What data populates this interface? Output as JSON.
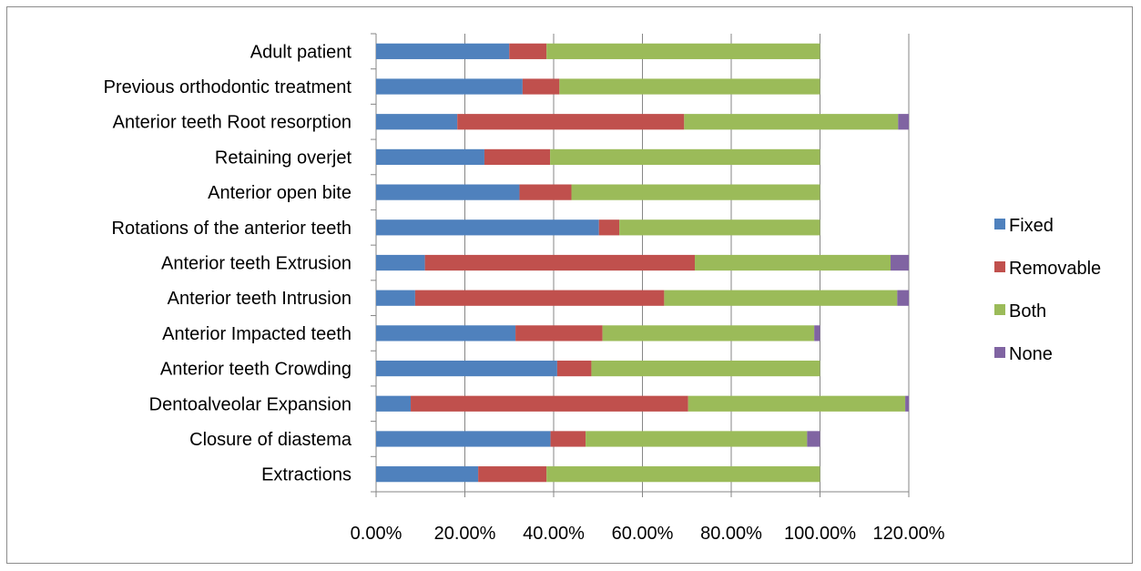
{
  "chart_data": {
    "type": "bar",
    "orientation": "horizontal",
    "stacked": true,
    "categories": [
      "Adult patient",
      "Previous orthodontic treatment",
      "Anterior teeth Root resorption",
      "Retaining overjet",
      "Anterior open bite",
      "Rotations of the anterior teeth",
      "Anterior teeth Extrusion",
      "Anterior teeth Intrusion",
      "Anterior Impacted teeth",
      "Anterior teeth Crowding",
      "Dentoalveolar Expansion",
      "Closure of diastema",
      "Extractions"
    ],
    "series": [
      {
        "name": "Fixed",
        "color": "#4f81bd",
        "values": [
          30.0,
          33.0,
          18.3,
          24.4,
          32.3,
          50.2,
          11.0,
          8.8,
          31.4,
          40.8,
          7.8,
          39.3,
          23.0
        ]
      },
      {
        "name": "Removable",
        "color": "#c0504d",
        "values": [
          8.4,
          8.3,
          51.1,
          14.8,
          11.7,
          4.6,
          60.8,
          56.1,
          19.6,
          7.7,
          62.5,
          7.9,
          15.4
        ]
      },
      {
        "name": "Both",
        "color": "#9bbb59",
        "values": [
          61.6,
          58.7,
          48.2,
          60.8,
          56.0,
          45.2,
          44.1,
          52.5,
          47.7,
          51.5,
          48.9,
          49.9,
          61.6
        ]
      },
      {
        "name": "None",
        "color": "#8064a2",
        "values": [
          0,
          0,
          2.4,
          0,
          0,
          0,
          4.1,
          2.6,
          1.3,
          0,
          0.8,
          2.9,
          0
        ]
      }
    ],
    "xlim": [
      0,
      120
    ],
    "xticks": [
      "0.00%",
      "20.00%",
      "40.00%",
      "60.00%",
      "80.00%",
      "100.00%",
      "120.00%"
    ],
    "xtick_values": [
      0,
      20,
      40,
      60,
      80,
      100,
      120
    ],
    "xlabel": "",
    "ylabel": "",
    "title": "",
    "grid": "vertical",
    "legend": "right"
  }
}
